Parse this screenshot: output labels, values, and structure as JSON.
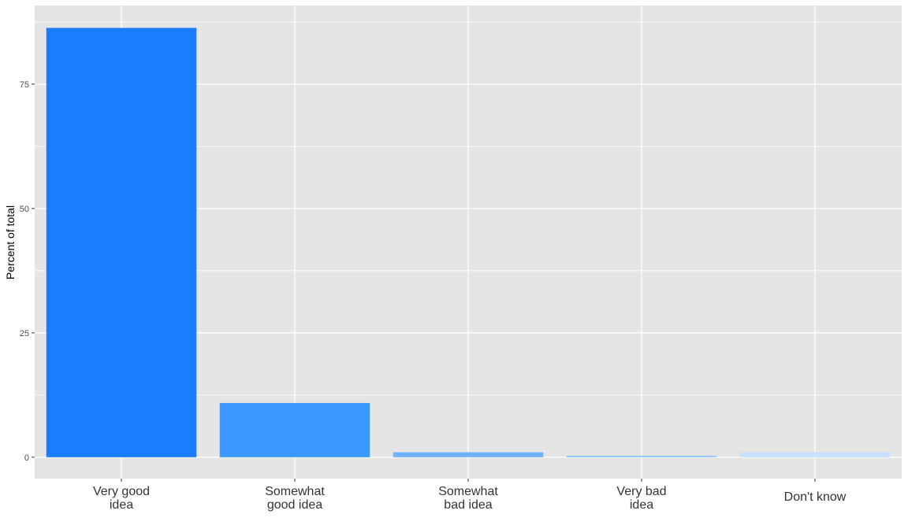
{
  "chart_data": {
    "type": "bar",
    "title": "",
    "xlabel": "",
    "ylabel": "Percent of total",
    "categories": [
      [
        "Very good",
        "idea"
      ],
      [
        "Somewhat",
        "good idea"
      ],
      [
        "Somewhat",
        "bad idea"
      ],
      [
        "Very bad",
        "idea"
      ],
      [
        "Don't know"
      ]
    ],
    "values": [
      86.3,
      10.9,
      1.0,
      0.3,
      1.0
    ],
    "colors": [
      "#1a7dff",
      "#3a98ff",
      "#6db3ff",
      "#92c7ff",
      "#c7e2ff"
    ],
    "ylim": [
      -4.3,
      90.8
    ],
    "yticks": [
      0,
      25,
      50,
      75
    ],
    "ytick_labels": [
      "0",
      "25",
      "50",
      "75"
    ],
    "grid": true,
    "panel_background": "#e5e5e5",
    "grid_color": "#ffffff",
    "legend": "none"
  }
}
